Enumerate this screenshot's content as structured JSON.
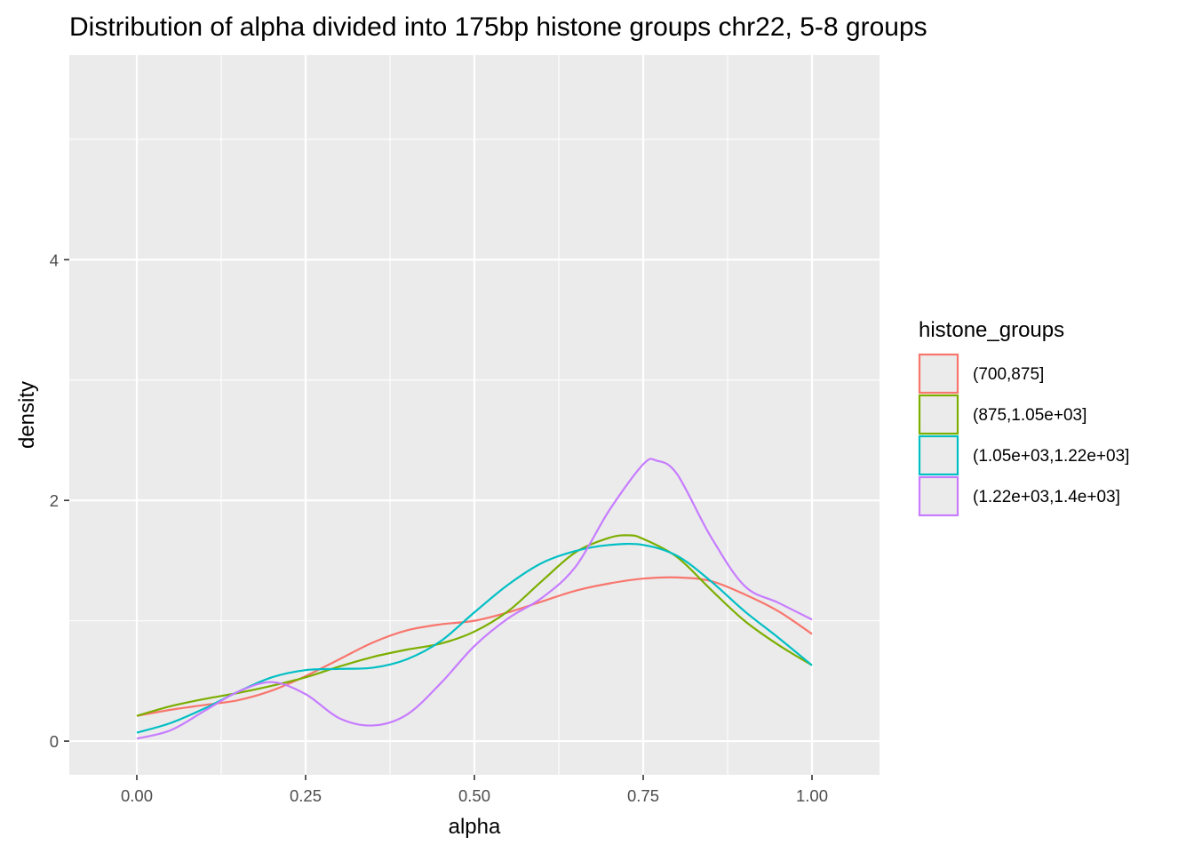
{
  "chart_data": {
    "type": "line",
    "title": "Distribution of alpha divided into 175bp histone groups chr22, 5-8 groups",
    "xlabel": "alpha",
    "ylabel": "density",
    "xlim": [
      -0.1,
      1.1
    ],
    "ylim": [
      -0.28,
      5.7
    ],
    "x_ticks": [
      {
        "value": 0.0,
        "label": "0.00"
      },
      {
        "value": 0.25,
        "label": "0.25"
      },
      {
        "value": 0.5,
        "label": "0.50"
      },
      {
        "value": 0.75,
        "label": "0.75"
      },
      {
        "value": 1.0,
        "label": "1.00"
      }
    ],
    "y_ticks": [
      {
        "value": 0,
        "label": "0"
      },
      {
        "value": 2,
        "label": "2"
      },
      {
        "value": 4,
        "label": "4"
      }
    ],
    "grid": true,
    "legend": {
      "title": "histone_groups",
      "position": "right"
    },
    "series": [
      {
        "name": "(700,875]",
        "color": "#F8766D",
        "x": [
          0.0,
          0.05,
          0.1,
          0.15,
          0.2,
          0.25,
          0.3,
          0.35,
          0.4,
          0.45,
          0.5,
          0.55,
          0.6,
          0.65,
          0.7,
          0.75,
          0.8,
          0.85,
          0.9,
          0.95,
          1.0
        ],
        "y": [
          0.21,
          0.26,
          0.3,
          0.34,
          0.42,
          0.54,
          0.68,
          0.82,
          0.92,
          0.97,
          1.0,
          1.07,
          1.16,
          1.25,
          1.31,
          1.35,
          1.36,
          1.33,
          1.22,
          1.08,
          0.89
        ]
      },
      {
        "name": "(875,1.05e+03]",
        "color": "#7CAE00",
        "x": [
          0.0,
          0.05,
          0.1,
          0.15,
          0.2,
          0.25,
          0.3,
          0.35,
          0.4,
          0.45,
          0.5,
          0.55,
          0.6,
          0.65,
          0.7,
          0.73,
          0.75,
          0.8,
          0.85,
          0.9,
          0.95,
          1.0
        ],
        "y": [
          0.21,
          0.29,
          0.35,
          0.4,
          0.46,
          0.53,
          0.62,
          0.7,
          0.76,
          0.81,
          0.91,
          1.08,
          1.33,
          1.57,
          1.69,
          1.71,
          1.68,
          1.53,
          1.26,
          1.0,
          0.8,
          0.63
        ]
      },
      {
        "name": "(1.05e+03,1.22e+03]",
        "color": "#00BFC4",
        "x": [
          0.0,
          0.05,
          0.1,
          0.15,
          0.2,
          0.25,
          0.3,
          0.35,
          0.4,
          0.45,
          0.5,
          0.55,
          0.6,
          0.65,
          0.7,
          0.75,
          0.8,
          0.85,
          0.9,
          0.95,
          1.0
        ],
        "y": [
          0.07,
          0.15,
          0.27,
          0.41,
          0.53,
          0.59,
          0.6,
          0.61,
          0.68,
          0.83,
          1.07,
          1.3,
          1.48,
          1.58,
          1.63,
          1.63,
          1.54,
          1.33,
          1.08,
          0.86,
          0.63
        ]
      },
      {
        "name": "(1.22e+03,1.4e+03]",
        "color": "#C77CFF",
        "x": [
          0.0,
          0.05,
          0.1,
          0.15,
          0.2,
          0.25,
          0.3,
          0.35,
          0.4,
          0.45,
          0.5,
          0.55,
          0.6,
          0.65,
          0.7,
          0.75,
          0.77,
          0.8,
          0.85,
          0.9,
          0.95,
          1.0
        ],
        "y": [
          0.02,
          0.09,
          0.25,
          0.41,
          0.49,
          0.39,
          0.19,
          0.13,
          0.22,
          0.48,
          0.79,
          1.02,
          1.19,
          1.45,
          1.92,
          2.3,
          2.33,
          2.22,
          1.7,
          1.29,
          1.15,
          1.01
        ]
      }
    ]
  }
}
